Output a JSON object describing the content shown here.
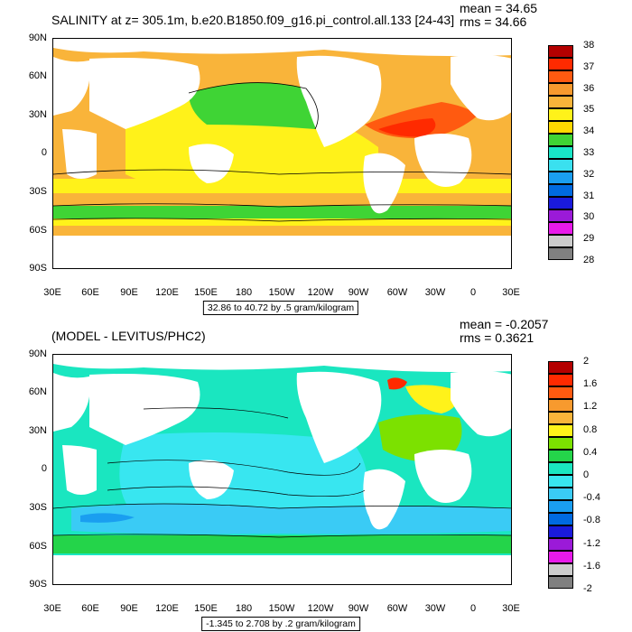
{
  "top": {
    "title": "SALINITY at z= 305.1m, b.e20.B1850.f09_g16.pi_control.all.133 [24-43]",
    "mean": "mean = 34.65",
    "rms": "rms = 34.66",
    "range_caption": "32.86 to 40.72 by .5 gram/kilogram",
    "legend_labels": [
      "38",
      "37",
      "36",
      "35",
      "34",
      "33",
      "32",
      "31",
      "30",
      "29",
      "28"
    ],
    "legend_colors": [
      "#b40000",
      "#ff2a00",
      "#ff5a10",
      "#f79a2e",
      "#f9b43a",
      "#fff21a",
      "#ffd900",
      "#3fd435",
      "#18e6c8",
      "#3ae0ef",
      "#1a9ef0",
      "#006ae0",
      "#1a1adc",
      "#9b1ad8",
      "#e81aea",
      "#cccccc",
      "#808080"
    ]
  },
  "bottom": {
    "title": "(MODEL - LEVITUS/PHC2)",
    "mean": "mean = -0.2057",
    "rms": "rms = 0.3621",
    "range_caption": "-1.345 to 2.708 by .2 gram/kilogram",
    "legend_labels": [
      "2",
      "1.6",
      "1.2",
      "0.8",
      "0.4",
      "0",
      "-0.4",
      "-0.8",
      "-1.2",
      "-1.6",
      "-2"
    ],
    "legend_colors": [
      "#b40000",
      "#ff2a00",
      "#ff5a10",
      "#f79a2e",
      "#f9b43a",
      "#fff21a",
      "#7ce100",
      "#24d44a",
      "#1ae6c0",
      "#38e6f0",
      "#3acbf5",
      "#1a9ef0",
      "#006ae0",
      "#1a1adc",
      "#9b1ad8",
      "#e81aea",
      "#cccccc",
      "#808080"
    ]
  },
  "axes": {
    "lat_labels": [
      "90N",
      "60N",
      "30N",
      "0",
      "30S",
      "60S",
      "90S"
    ],
    "lon_labels": [
      "30E",
      "60E",
      "90E",
      "120E",
      "150E",
      "180",
      "150W",
      "120W",
      "90W",
      "60W",
      "30W",
      "0",
      "30E"
    ]
  }
}
